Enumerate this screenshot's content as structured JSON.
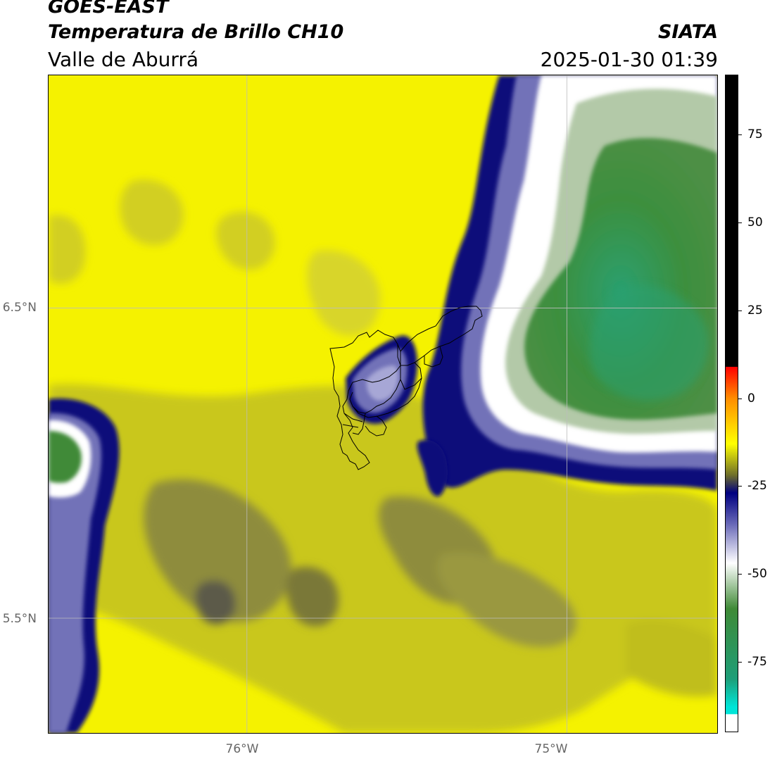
{
  "header": {
    "satellite": "GOES-EAST",
    "product": "Temperatura de Brillo CH10",
    "organization": "SIATA",
    "region": "Valle de Aburrá",
    "timestamp": "2025-01-30 01:39"
  },
  "map": {
    "lat_labels": [
      "6.5°N",
      "5.5°N"
    ],
    "lon_labels": [
      "76°W",
      "75°W"
    ],
    "lat_lines": [
      6.5,
      5.5
    ],
    "lon_lines": [
      -76,
      -75
    ],
    "extent": {
      "lon_min": -76.62,
      "lon_max": -74.53,
      "lat_min": 5.13,
      "lat_max": 7.25
    },
    "gridline_color": "#bdbdbd"
  },
  "colorbar": {
    "ticks": [
      75,
      50,
      25,
      0,
      -25,
      -50,
      -75
    ],
    "tick_labels": [
      "75",
      "50",
      "25",
      "0",
      "-25",
      "-50",
      "-75"
    ],
    "range": [
      -95,
      92
    ],
    "stops": [
      {
        "value": 92,
        "color": "#000000"
      },
      {
        "value": 9,
        "color": "#000000"
      },
      {
        "value": 8.9,
        "color": "#ff0000"
      },
      {
        "value": 0,
        "color": "#ff8c00"
      },
      {
        "value": -13,
        "color": "#ffff00"
      },
      {
        "value": -22,
        "color": "#6d6d2a"
      },
      {
        "value": -27,
        "color": "#000080"
      },
      {
        "value": -36,
        "color": "#6a6ab8"
      },
      {
        "value": -47,
        "color": "#ffffff"
      },
      {
        "value": -60,
        "color": "#3f8a36"
      },
      {
        "value": -80,
        "color": "#1e9e78"
      },
      {
        "value": -88,
        "color": "#00e5d8"
      },
      {
        "value": -90,
        "color": "#00e5d8"
      },
      {
        "value": -90.1,
        "color": "#ffffff"
      },
      {
        "value": -95,
        "color": "#ffffff"
      }
    ]
  },
  "colors": {
    "clear_sky": "#f5f200",
    "moist_olive": "#c9c71a",
    "dark_olive": "#7f7d3a",
    "cloud_edge": "#0a0a7a",
    "cloud_mid": "#7272b8",
    "cloud_white": "#ffffff",
    "cloud_core": "#3f8a38",
    "cloud_core_deep": "#2aa070",
    "boundary": "#000000"
  }
}
